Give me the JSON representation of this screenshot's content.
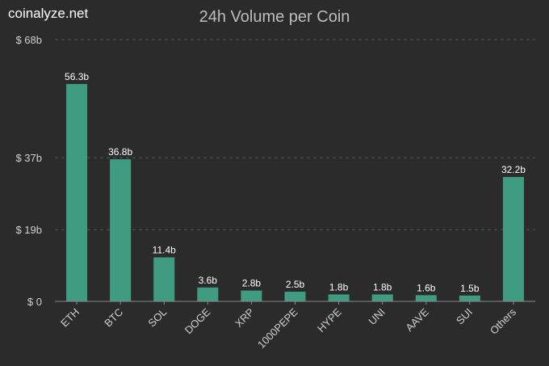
{
  "brand": "coinalyze.net",
  "chart_data": {
    "type": "bar",
    "title": "24h Volume per Coin",
    "categories": [
      "ETH",
      "BTC",
      "SOL",
      "DOGE",
      "XRP",
      "1000PEPE",
      "HYPE",
      "UNI",
      "AAVE",
      "SUI",
      "Others"
    ],
    "values": [
      56.3,
      36.8,
      11.4,
      3.6,
      2.8,
      2.5,
      1.8,
      1.8,
      1.6,
      1.5,
      32.2
    ],
    "value_labels": [
      "56.3b",
      "36.8b",
      "11.4b",
      "3.6b",
      "2.8b",
      "2.5b",
      "1.8b",
      "1.8b",
      "1.6b",
      "1.5b",
      "32.2b"
    ],
    "yticks": [
      0,
      18.6,
      37.2,
      67.8
    ],
    "ytick_labels": [
      "$ 0",
      "$ 19b",
      "$ 37b",
      "$ 68b"
    ],
    "ylim": [
      0,
      67.8
    ],
    "xlabel": "",
    "ylabel": "",
    "grid": true,
    "colors": {
      "background": "#2b2b2b",
      "bar": "#3f9c80",
      "grid": "#555555"
    }
  }
}
